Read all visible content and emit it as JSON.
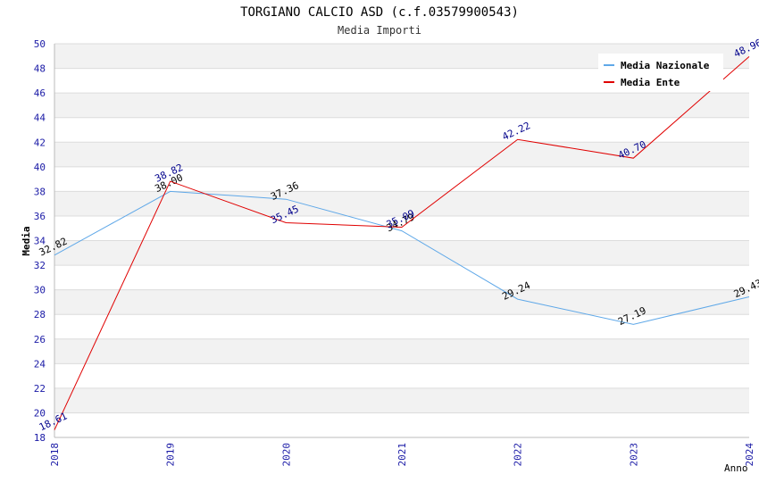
{
  "chart_data": {
    "type": "line",
    "title": "TORGIANO CALCIO ASD (c.f.03579900543)",
    "subtitle": "Media Importi",
    "xlabel": "Anno",
    "ylabel": "Media",
    "x": [
      "2018",
      "2019",
      "2020",
      "2021",
      "2022",
      "2023",
      "2024"
    ],
    "ylim": [
      18,
      50
    ],
    "yticks": [
      18,
      20,
      22,
      24,
      26,
      28,
      30,
      32,
      34,
      36,
      38,
      40,
      42,
      44,
      46,
      48,
      50
    ],
    "grid": true,
    "legend_position": "top-right",
    "series": [
      {
        "name": "Media Nazionale",
        "color": "#5fa8e8",
        "label_color": "#000000",
        "values": [
          32.82,
          38.0,
          37.36,
          34.79,
          29.24,
          27.19,
          29.43
        ],
        "labels": [
          "32.82",
          "38.00",
          "37.36",
          "34.79",
          "29.24",
          "27.19",
          "29.43"
        ]
      },
      {
        "name": "Media Ente",
        "color": "#e00000",
        "label_color": "#00008b",
        "values": [
          18.61,
          38.82,
          35.45,
          35.09,
          42.22,
          40.7,
          48.96
        ],
        "labels": [
          "18.61",
          "38.82",
          "35.45",
          "35.09",
          "42.22",
          "40.70",
          "48.96"
        ]
      }
    ]
  }
}
